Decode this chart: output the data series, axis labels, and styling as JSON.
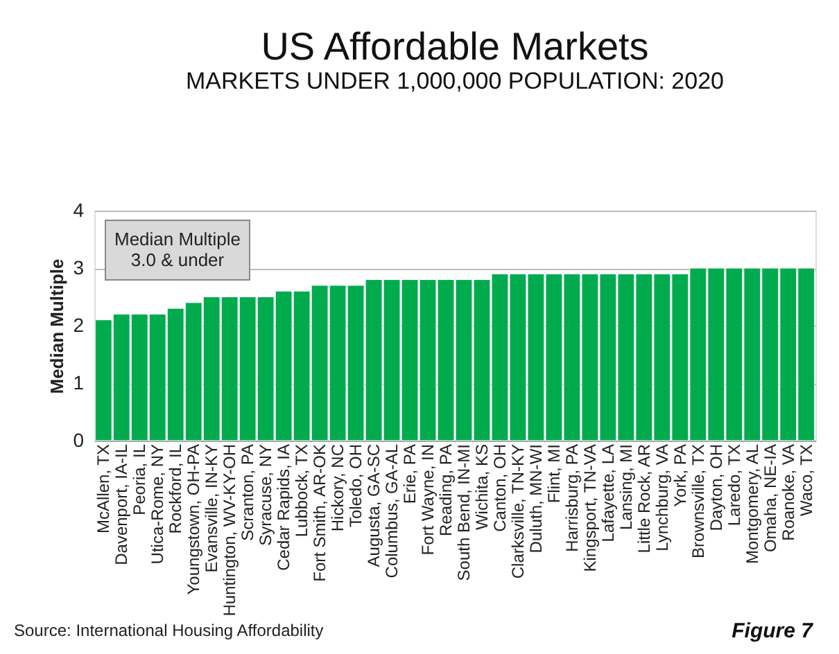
{
  "chart_data": {
    "type": "bar",
    "title": "US Affordable Markets",
    "subtitle": "MARKETS UNDER 1,000,000 POPULATION: 2020",
    "ylabel": "Median Multiple",
    "categories": [
      "McAllen, TX",
      "Davenport, IA-IL",
      "Peoria, IL",
      "Utica-Rome, NY",
      "Rockford, IL",
      "Youngstown, OH-PA",
      "Evansville, IN-KY",
      "Huntington, WV-KY-OH",
      "Scranton, PA",
      "Syracuse, NY",
      "Cedar Rapids, IA",
      "Lubbock, TX",
      "Fort Smith, AR-OK",
      "Hickory, NC",
      "Toledo, OH",
      "Augusta, GA-SC",
      "Columbus, GA-AL",
      "Erie, PA",
      "Fort Wayne, IN",
      "Reading, PA",
      "South Bend, IN-MI",
      "Wichita, KS",
      "Canton, OH",
      "Clarksville, TN-KY",
      "Duluth, MN-WI",
      "Flint, MI",
      "Harrisburg, PA",
      "Kingsport, TN-VA",
      "Lafayette, LA",
      "Lansing, MI",
      "Little Rock, AR",
      "Lynchburg, VA",
      "York, PA",
      "Brownsville, TX",
      "Dayton, OH",
      "Laredo, TX",
      "Montgomery, AL",
      "Omaha, NE-IA",
      "Roanoke, VA",
      "Waco, TX"
    ],
    "values": [
      2.1,
      2.2,
      2.2,
      2.2,
      2.3,
      2.4,
      2.5,
      2.5,
      2.5,
      2.5,
      2.6,
      2.6,
      2.7,
      2.7,
      2.7,
      2.8,
      2.8,
      2.8,
      2.8,
      2.8,
      2.8,
      2.8,
      2.9,
      2.9,
      2.9,
      2.9,
      2.9,
      2.9,
      2.9,
      2.9,
      2.9,
      2.9,
      2.9,
      3.0,
      3.0,
      3.0,
      3.0,
      3.0,
      3.0,
      3.0
    ],
    "color": "#00ab4e",
    "ylim": [
      0,
      4
    ],
    "yticks": [
      0,
      1,
      2,
      3,
      4
    ],
    "grid": "y",
    "annotations": [
      "Median Multiple\n3.0 & under",
      "Source: International Housing Affordability",
      "Figure 7"
    ]
  }
}
